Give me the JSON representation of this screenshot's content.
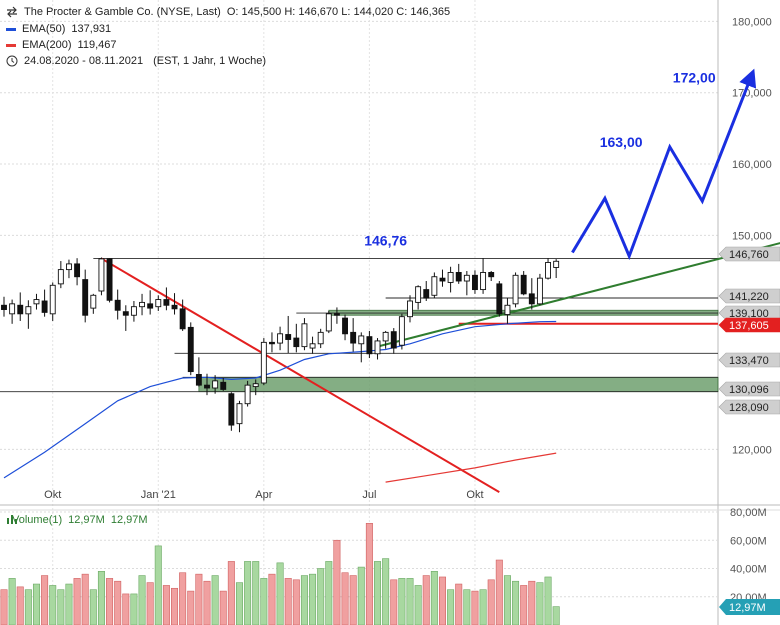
{
  "header": {
    "title": "The Procter & Gamble Co. (NYSE, Last)",
    "ohlc": "O: 145,500  H: 146,670  L: 144,020  C: 146,365",
    "ema50_label": "EMA(50)",
    "ema50_value": "137,931",
    "ema200_label": "EMA(200)",
    "ema200_value": "119,467",
    "range": "24.08.2020 - 08.11.2021",
    "range_info": "(EST, 1 Jahr, 1 Woche)"
  },
  "volume_legend": {
    "label": "Volume(1)",
    "v1": "12,97M",
    "v2": "12,97M"
  },
  "colors": {
    "up": "#ffffff",
    "down": "#111111",
    "ema50": "#1e4fd8",
    "ema200": "#e53935",
    "target": "#1a2fe0",
    "trend_down": "#e32020",
    "trend_up": "#2f7d2f",
    "zone": "#6fa06f",
    "vol_up": "#a8d8a0",
    "vol_down": "#f0a0a0"
  },
  "chart_data": {
    "type": "candlestick",
    "title": "The Procter & Gamble Co. (NYSE, Last)",
    "period": "weekly",
    "ylim": [
      115,
      183
    ],
    "y_ticks": [
      "180,000",
      "170,000",
      "160,000",
      "150,000",
      "120,000"
    ],
    "x_ticks": [
      "Okt",
      "Jan '21",
      "Apr",
      "Jul",
      "Okt"
    ],
    "candles": [
      {
        "o": 140.2,
        "h": 141.4,
        "l": 138.6,
        "c": 139.6
      },
      {
        "o": 139.0,
        "h": 141.0,
        "l": 137.6,
        "c": 140.4
      },
      {
        "o": 140.2,
        "h": 142.0,
        "l": 138.0,
        "c": 139.0
      },
      {
        "o": 139.0,
        "h": 140.9,
        "l": 136.9,
        "c": 140.0
      },
      {
        "o": 140.4,
        "h": 141.8,
        "l": 139.6,
        "c": 141.0
      },
      {
        "o": 140.8,
        "h": 142.4,
        "l": 138.6,
        "c": 139.2
      },
      {
        "o": 139.0,
        "h": 143.4,
        "l": 138.0,
        "c": 143.0
      },
      {
        "o": 143.2,
        "h": 146.4,
        "l": 142.6,
        "c": 145.2
      },
      {
        "o": 145.2,
        "h": 146.6,
        "l": 144.0,
        "c": 146.0
      },
      {
        "o": 146.0,
        "h": 146.8,
        "l": 143.0,
        "c": 144.2
      },
      {
        "o": 143.8,
        "h": 145.2,
        "l": 137.8,
        "c": 138.8
      },
      {
        "o": 139.8,
        "h": 141.8,
        "l": 139.0,
        "c": 141.6
      },
      {
        "o": 142.2,
        "h": 146.9,
        "l": 141.6,
        "c": 146.7
      },
      {
        "o": 146.7,
        "h": 146.8,
        "l": 140.6,
        "c": 140.9
      },
      {
        "o": 140.9,
        "h": 142.4,
        "l": 138.2,
        "c": 139.5
      },
      {
        "o": 139.3,
        "h": 140.2,
        "l": 136.6,
        "c": 138.8
      },
      {
        "o": 138.8,
        "h": 140.8,
        "l": 137.9,
        "c": 140.0
      },
      {
        "o": 140.0,
        "h": 141.8,
        "l": 138.8,
        "c": 140.6
      },
      {
        "o": 140.4,
        "h": 142.3,
        "l": 138.9,
        "c": 139.8
      },
      {
        "o": 140.0,
        "h": 141.6,
        "l": 139.4,
        "c": 141.0
      },
      {
        "o": 141.0,
        "h": 142.7,
        "l": 139.5,
        "c": 140.2
      },
      {
        "o": 140.2,
        "h": 141.9,
        "l": 138.9,
        "c": 139.7
      },
      {
        "o": 139.7,
        "h": 141.0,
        "l": 136.6,
        "c": 136.9
      },
      {
        "o": 137.1,
        "h": 137.8,
        "l": 130.4,
        "c": 130.9
      },
      {
        "o": 130.5,
        "h": 132.9,
        "l": 128.8,
        "c": 129.0
      },
      {
        "o": 129.0,
        "h": 130.6,
        "l": 127.6,
        "c": 128.6
      },
      {
        "o": 128.6,
        "h": 130.4,
        "l": 127.8,
        "c": 129.6
      },
      {
        "o": 129.4,
        "h": 130.0,
        "l": 128.2,
        "c": 128.4
      },
      {
        "o": 127.8,
        "h": 128.0,
        "l": 122.6,
        "c": 123.4
      },
      {
        "o": 123.6,
        "h": 126.8,
        "l": 122.4,
        "c": 126.4
      },
      {
        "o": 126.4,
        "h": 129.6,
        "l": 126.0,
        "c": 129.0
      },
      {
        "o": 128.8,
        "h": 129.8,
        "l": 127.6,
        "c": 129.2
      },
      {
        "o": 129.3,
        "h": 135.6,
        "l": 129.0,
        "c": 135.0
      },
      {
        "o": 135.0,
        "h": 136.4,
        "l": 133.6,
        "c": 134.8
      },
      {
        "o": 134.9,
        "h": 137.2,
        "l": 133.9,
        "c": 136.2
      },
      {
        "o": 136.1,
        "h": 138.7,
        "l": 133.5,
        "c": 135.4
      },
      {
        "o": 135.6,
        "h": 137.6,
        "l": 133.6,
        "c": 134.4
      },
      {
        "o": 134.4,
        "h": 138.4,
        "l": 133.9,
        "c": 137.6
      },
      {
        "o": 134.2,
        "h": 135.8,
        "l": 133.4,
        "c": 134.8
      },
      {
        "o": 134.8,
        "h": 136.9,
        "l": 134.2,
        "c": 136.4
      },
      {
        "o": 136.6,
        "h": 139.4,
        "l": 136.3,
        "c": 139.0
      },
      {
        "o": 139.0,
        "h": 139.9,
        "l": 137.6,
        "c": 138.8
      },
      {
        "o": 138.4,
        "h": 138.9,
        "l": 135.3,
        "c": 136.2
      },
      {
        "o": 136.4,
        "h": 138.4,
        "l": 133.7,
        "c": 134.9
      },
      {
        "o": 134.8,
        "h": 136.4,
        "l": 132.2,
        "c": 135.9
      },
      {
        "o": 135.8,
        "h": 136.6,
        "l": 132.8,
        "c": 133.4
      },
      {
        "o": 133.4,
        "h": 135.6,
        "l": 132.6,
        "c": 135.2
      },
      {
        "o": 135.2,
        "h": 136.6,
        "l": 134.1,
        "c": 136.4
      },
      {
        "o": 136.5,
        "h": 137.0,
        "l": 133.4,
        "c": 134.2
      },
      {
        "o": 134.6,
        "h": 139.0,
        "l": 134.0,
        "c": 138.6
      },
      {
        "o": 138.6,
        "h": 141.6,
        "l": 137.8,
        "c": 140.8
      },
      {
        "o": 140.6,
        "h": 143.0,
        "l": 139.6,
        "c": 142.8
      },
      {
        "o": 142.4,
        "h": 143.6,
        "l": 140.8,
        "c": 141.2
      },
      {
        "o": 141.6,
        "h": 144.8,
        "l": 141.2,
        "c": 144.2
      },
      {
        "o": 144.0,
        "h": 145.2,
        "l": 142.8,
        "c": 143.6
      },
      {
        "o": 143.4,
        "h": 145.6,
        "l": 142.0,
        "c": 144.8
      },
      {
        "o": 144.8,
        "h": 146.0,
        "l": 143.2,
        "c": 143.6
      },
      {
        "o": 143.6,
        "h": 145.0,
        "l": 141.6,
        "c": 144.4
      },
      {
        "o": 144.4,
        "h": 145.1,
        "l": 141.8,
        "c": 142.4
      },
      {
        "o": 142.4,
        "h": 146.8,
        "l": 141.8,
        "c": 144.8
      },
      {
        "o": 144.8,
        "h": 145.0,
        "l": 143.6,
        "c": 144.2
      },
      {
        "o": 143.2,
        "h": 143.6,
        "l": 138.6,
        "c": 139.0
      },
      {
        "o": 138.9,
        "h": 141.2,
        "l": 137.6,
        "c": 140.2
      },
      {
        "o": 140.4,
        "h": 144.8,
        "l": 139.9,
        "c": 144.4
      },
      {
        "o": 144.4,
        "h": 145.0,
        "l": 141.6,
        "c": 141.8
      },
      {
        "o": 141.8,
        "h": 144.0,
        "l": 139.6,
        "c": 140.4
      },
      {
        "o": 140.4,
        "h": 144.6,
        "l": 140.2,
        "c": 144.0
      },
      {
        "o": 144.0,
        "h": 146.8,
        "l": 143.8,
        "c": 146.2
      },
      {
        "o": 145.5,
        "h": 146.67,
        "l": 144.02,
        "c": 146.365
      }
    ],
    "ema50": [
      [
        0,
        116.0
      ],
      [
        5,
        119.6
      ],
      [
        10,
        123.6
      ],
      [
        14,
        126.8
      ],
      [
        18,
        128.8
      ],
      [
        22,
        130.0
      ],
      [
        25,
        130.1
      ],
      [
        28,
        129.8
      ],
      [
        31,
        130.0
      ],
      [
        34,
        131.1
      ],
      [
        37,
        132.6
      ],
      [
        40,
        133.4
      ],
      [
        44,
        133.7
      ],
      [
        47,
        134.0
      ],
      [
        50,
        134.8
      ],
      [
        54,
        136.2
      ],
      [
        58,
        137.2
      ],
      [
        62,
        137.6
      ],
      [
        66,
        137.9
      ],
      [
        68,
        137.93
      ]
    ],
    "ema200_tail": [
      [
        47,
        115.4
      ],
      [
        52,
        116.3
      ],
      [
        58,
        117.4
      ],
      [
        63,
        118.5
      ],
      [
        68,
        119.467
      ]
    ],
    "levels": [
      {
        "label": "146,760",
        "value": 146.76,
        "color": "#2a2a2a"
      },
      {
        "label": "141,220",
        "value": 141.22,
        "color": "#2a2a2a"
      },
      {
        "label": "139,100",
        "value": 139.1,
        "color": "#2a2a2a"
      },
      {
        "label": "137,605",
        "value": 137.605,
        "color": "#e32020"
      },
      {
        "label": "133,470",
        "value": 133.47,
        "color": "#2a2a2a"
      },
      {
        "label": "130,096",
        "value": 130.096,
        "color": "#2a2a2a"
      },
      {
        "label": "128,090",
        "value": 128.09,
        "color": "#2a2a2a"
      }
    ],
    "zones": [
      {
        "from": 130.096,
        "to": 128.09,
        "start": 24
      },
      {
        "from": 139.5,
        "to": 138.8,
        "start": 40
      }
    ],
    "trendline_down": [
      [
        12,
        146.76
      ],
      [
        61,
        114.0
      ]
    ],
    "trendline_up": [
      [
        46,
        134.4
      ],
      [
        100,
        150.2
      ]
    ],
    "target_path": [
      [
        70,
        147.6
      ],
      [
        74,
        155.2
      ],
      [
        77,
        147.1
      ],
      [
        82,
        162.4
      ],
      [
        86,
        154.8
      ],
      [
        92,
        172.2
      ]
    ],
    "annotations": [
      {
        "text": "146,76",
        "x": 47,
        "y": 148.6
      },
      {
        "text": "163,00",
        "x": 76,
        "y": 162.4
      },
      {
        "text": "172,00",
        "x": 85,
        "y": 171.4
      }
    ],
    "volume": {
      "label": "Volume(1)",
      "y_ticks": [
        "80,00M",
        "60,00M",
        "40,00M",
        "20,00M"
      ],
      "ylim": [
        0,
        80
      ],
      "last": "12,97M",
      "values": [
        25,
        33,
        27,
        25,
        29,
        35,
        28,
        25,
        29,
        33,
        36,
        25,
        38,
        33,
        31,
        22,
        22,
        35,
        30,
        56,
        28,
        26,
        37,
        24,
        36,
        31,
        35,
        24,
        45,
        30,
        45,
        45,
        33,
        36,
        44,
        33,
        32,
        35,
        36,
        40,
        45,
        60,
        37,
        35,
        41,
        72,
        45,
        47,
        32,
        33,
        33,
        28,
        35,
        38,
        34,
        25,
        29,
        25,
        24,
        25,
        32,
        46,
        35,
        31,
        28,
        31,
        30,
        34,
        13
      ]
    }
  }
}
